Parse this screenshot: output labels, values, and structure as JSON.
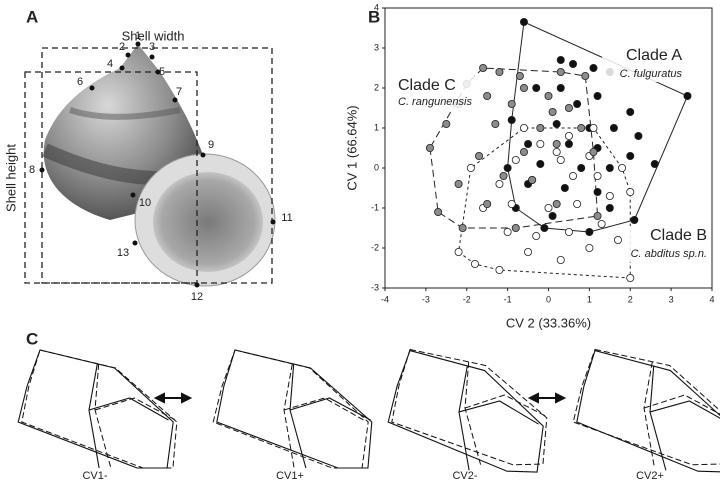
{
  "panels": {
    "A": {
      "label": "A",
      "shell_width": "Shell width",
      "shell_height": "Shell height",
      "landmarks": [
        "1",
        "2",
        "3",
        "4",
        "5",
        "6",
        "7",
        "8",
        "9",
        "10",
        "11",
        "12",
        "13"
      ]
    },
    "B": {
      "label": "B"
    },
    "C": {
      "label": "C",
      "shapes": [
        "CV1-",
        "CV1+",
        "CV2-",
        "CV2+"
      ]
    }
  },
  "chart_data": {
    "type": "scatter",
    "xlabel": "CV 2 (33.36%)",
    "ylabel": "CV 1 (66.64%)",
    "xlim": [
      -4,
      4
    ],
    "xticks": [
      -4,
      -3,
      -2,
      -1,
      0,
      1,
      2,
      3,
      4
    ],
    "ylim": [
      -3,
      4
    ],
    "yticks": [
      -3,
      -2,
      -1,
      0,
      1,
      2,
      3,
      4
    ],
    "series": [
      {
        "name": "Clade A",
        "species": "C. fulguratus",
        "color": "#111111",
        "line_style": "solid",
        "x": [
          -0.6,
          3.4,
          0.3,
          0.6,
          1.1,
          1.5,
          -0.3,
          0.3,
          1.2,
          2.0,
          0.7,
          -0.9,
          0.2,
          1.0,
          1.6,
          2.2,
          -0.5,
          0.5,
          1.2,
          2.0,
          -1.0,
          -0.2,
          0.8,
          1.5,
          2.6,
          -0.5,
          0.4,
          1.2,
          -0.8,
          0.1,
          1.5,
          2.1,
          1.0,
          -0.1
        ],
        "values": [
          3.65,
          1.8,
          2.7,
          2.6,
          2.5,
          2.4,
          2.0,
          2.0,
          1.8,
          1.4,
          1.6,
          1.2,
          1.1,
          1.0,
          1.0,
          0.8,
          0.6,
          0.6,
          0.5,
          0.3,
          0.0,
          0.1,
          0.0,
          0.0,
          0.1,
          -0.4,
          -0.5,
          -0.6,
          -1.0,
          -1.2,
          -1.0,
          -1.3,
          -1.6,
          -1.5
        ]
      },
      {
        "name": "Clade B",
        "species": "C. abditus sp.n.",
        "color": "#ffffff",
        "line_style": "short-dash",
        "x": [
          2.0,
          -2.2,
          -1.8,
          -1.2,
          -0.5,
          0.3,
          1.0,
          1.7,
          2.0,
          -1.0,
          -0.3,
          0.5,
          1.3,
          -1.6,
          -0.9,
          0.0,
          0.7,
          1.5,
          -1.2,
          -0.4,
          0.6,
          1.2,
          -0.8,
          0.3,
          1.0,
          -0.2,
          0.5,
          1.1,
          -0.6,
          0.2,
          -1.9,
          1.8
        ],
        "values": [
          -2.75,
          -2.1,
          -2.4,
          -2.55,
          -2.1,
          -2.3,
          -2.0,
          -1.8,
          -0.6,
          -1.6,
          -1.7,
          -1.6,
          -1.4,
          -1.0,
          -0.9,
          -1.0,
          -0.9,
          -0.7,
          -0.4,
          -0.3,
          -0.2,
          -0.2,
          0.2,
          0.2,
          0.3,
          0.6,
          0.8,
          1.0,
          1.0,
          0.4,
          0.0,
          0.0
        ]
      },
      {
        "name": "Clade C",
        "species": "C. rangunensis",
        "color": "#8c8c8c",
        "line_style": "long-dash",
        "x": [
          -1.6,
          -1.2,
          -0.7,
          0.3,
          0.9,
          -2.0,
          -0.6,
          0.0,
          -1.5,
          -2.2,
          -0.9,
          0.1,
          0.5,
          -2.5,
          -1.3,
          -0.2,
          0.8,
          -2.9,
          -1.7,
          -0.6,
          0.2,
          -1.1,
          -2.2,
          -0.4,
          -1.5,
          0.2,
          -2.7,
          -2.1,
          -0.8,
          1.2,
          1.1
        ],
        "values": [
          2.5,
          2.4,
          2.3,
          2.4,
          2.3,
          2.1,
          2.0,
          1.8,
          1.8,
          1.6,
          1.6,
          1.4,
          1.5,
          1.1,
          1.1,
          1.0,
          1.0,
          0.5,
          0.3,
          0.4,
          0.6,
          -0.2,
          -0.4,
          -0.3,
          -0.9,
          -0.9,
          -1.1,
          -1.5,
          -1.5,
          -1.2,
          0.4
        ]
      }
    ]
  }
}
